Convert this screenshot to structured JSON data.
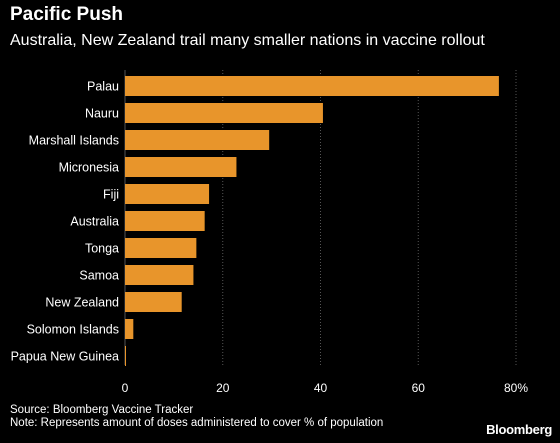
{
  "chart_data": {
    "type": "bar",
    "orientation": "horizontal",
    "title": "Pacific Push",
    "subtitle": "Australia, New Zealand trail many smaller nations in vaccine rollout",
    "categories": [
      "Palau",
      "Nauru",
      "Marshall Islands",
      "Micronesia",
      "Fiji",
      "Australia",
      "Tonga",
      "Samoa",
      "New Zealand",
      "Solomon Islands",
      "Papua New Guinea"
    ],
    "values": [
      76.5,
      40.5,
      29.5,
      22.8,
      17.2,
      16.3,
      14.6,
      14.0,
      11.6,
      1.7,
      0.2
    ],
    "xlim": [
      0,
      80
    ],
    "xticks": [
      "0",
      "20",
      "40",
      "60",
      "80%"
    ],
    "xtick_values": [
      0,
      20,
      40,
      60,
      80
    ],
    "grid": "vertical",
    "bar_color": "#e8952b",
    "grid_color": "#555555",
    "source": "Source: Bloomberg Vaccine Tracker",
    "note": "Note: Represents amount of doses administered to cover % of population",
    "brand": "Bloomberg"
  }
}
